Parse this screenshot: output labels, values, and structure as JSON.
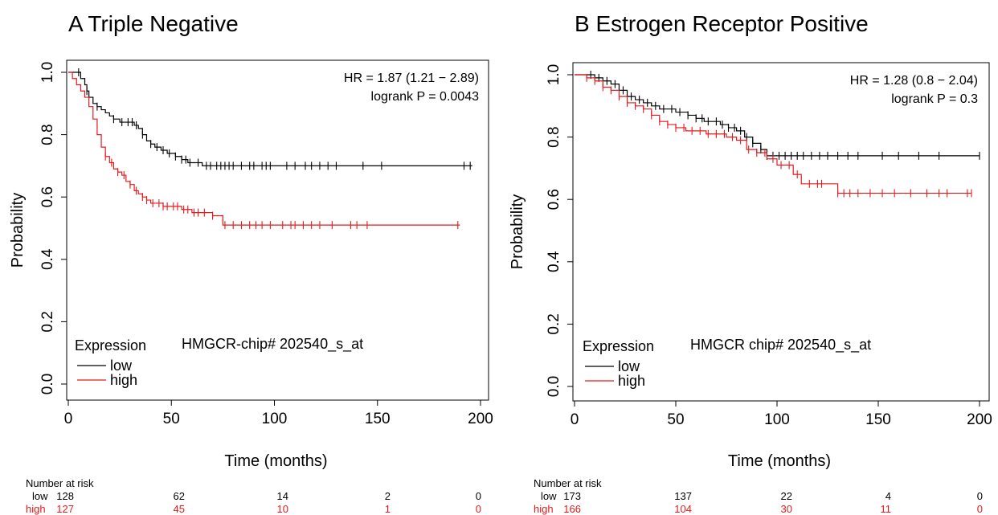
{
  "chart_data": [
    {
      "panel_label": "A",
      "title": "Triple Negative",
      "type": "line",
      "xlabel": "Time (months)",
      "ylabel": "Probability",
      "xlim": [
        0,
        200
      ],
      "ylim": [
        0,
        1.0
      ],
      "xticks": [
        "0",
        "50",
        "100",
        "150",
        "200"
      ],
      "yticks": [
        "0.0",
        "0.2",
        "0.4",
        "0.6",
        "0.8",
        "1.0"
      ],
      "hr_text": "HR = 1.87 (1.21 − 2.89)",
      "logrank_text": "logrank P = 0.0043",
      "legend_title": "Expression",
      "probe_label": "HMGCR-chip# 202540_s_at",
      "colors": {
        "low": "#000000",
        "high": "#e41a1c"
      },
      "series": [
        {
          "name": "low",
          "x": [
            0,
            5,
            6,
            8,
            9,
            10,
            12,
            14,
            16,
            18,
            20,
            22,
            25,
            28,
            32,
            34,
            36,
            38,
            40,
            42,
            45,
            48,
            52,
            55,
            58,
            62,
            65,
            68,
            196
          ],
          "y": [
            1.0,
            1.0,
            0.98,
            0.96,
            0.94,
            0.92,
            0.9,
            0.89,
            0.88,
            0.87,
            0.86,
            0.85,
            0.84,
            0.84,
            0.83,
            0.82,
            0.8,
            0.78,
            0.77,
            0.76,
            0.75,
            0.74,
            0.73,
            0.72,
            0.71,
            0.71,
            0.7,
            0.7,
            0.7
          ],
          "censor_x": [
            5,
            9,
            14,
            22,
            26,
            29,
            31,
            33,
            36,
            40,
            43,
            46,
            49,
            52,
            55,
            57,
            59,
            63,
            67,
            69,
            72,
            74,
            76,
            78,
            80,
            84,
            88,
            90,
            94,
            96,
            98,
            106,
            110,
            115,
            118,
            122,
            126,
            130,
            143,
            152,
            192,
            195
          ]
        },
        {
          "name": "high",
          "x": [
            0,
            2,
            4,
            6,
            8,
            10,
            12,
            14,
            16,
            18,
            20,
            22,
            24,
            26,
            28,
            30,
            32,
            34,
            36,
            38,
            40,
            43,
            46,
            50,
            55,
            60,
            65,
            70,
            75,
            190
          ],
          "y": [
            1.0,
            0.98,
            0.96,
            0.94,
            0.92,
            0.89,
            0.85,
            0.8,
            0.76,
            0.73,
            0.71,
            0.69,
            0.68,
            0.67,
            0.65,
            0.64,
            0.62,
            0.61,
            0.6,
            0.59,
            0.58,
            0.58,
            0.57,
            0.57,
            0.56,
            0.55,
            0.55,
            0.54,
            0.51,
            0.51
          ],
          "censor_x": [
            18,
            21,
            24,
            27,
            30,
            33,
            36,
            38,
            41,
            44,
            46,
            48,
            51,
            53,
            56,
            58,
            61,
            63,
            66,
            70,
            76,
            80,
            84,
            88,
            91,
            94,
            98,
            104,
            108,
            110,
            114,
            118,
            122,
            128,
            137,
            140,
            145,
            189
          ]
        }
      ]
    },
    {
      "panel_label": "B",
      "title": "Estrogen Receptor Positive",
      "type": "line",
      "xlabel": "Time (months)",
      "ylabel": "Probability",
      "xlim": [
        0,
        200
      ],
      "ylim": [
        0,
        1.0
      ],
      "xticks": [
        "0",
        "50",
        "100",
        "150",
        "200"
      ],
      "yticks": [
        "0.0",
        "0.2",
        "0.4",
        "0.6",
        "0.8",
        "1.0"
      ],
      "hr_text": "HR = 1.28 (0.8 − 2.04)",
      "logrank_text": "logrank P = 0.3",
      "legend_title": "Expression",
      "probe_label": "HMGCR chip# 202540_s_at",
      "colors": {
        "low": "#000000",
        "high": "#e41a1c"
      },
      "series": [
        {
          "name": "low",
          "x": [
            0,
            10,
            14,
            18,
            22,
            26,
            30,
            34,
            38,
            42,
            46,
            50,
            56,
            60,
            64,
            68,
            72,
            76,
            80,
            84,
            88,
            92,
            95,
            200
          ],
          "y": [
            1.0,
            0.99,
            0.98,
            0.97,
            0.95,
            0.93,
            0.92,
            0.91,
            0.9,
            0.89,
            0.89,
            0.88,
            0.87,
            0.86,
            0.85,
            0.85,
            0.84,
            0.83,
            0.82,
            0.8,
            0.78,
            0.76,
            0.74,
            0.74
          ],
          "censor_x": [
            8,
            12,
            16,
            20,
            24,
            28,
            32,
            36,
            40,
            44,
            48,
            52,
            56,
            60,
            63,
            66,
            70,
            73,
            76,
            79,
            82,
            85,
            88,
            92,
            95,
            98,
            101,
            104,
            107,
            110,
            113,
            117,
            121,
            125,
            130,
            135,
            140,
            152,
            160,
            170,
            180,
            200
          ]
        },
        {
          "name": "high",
          "x": [
            0,
            6,
            10,
            14,
            18,
            22,
            26,
            30,
            34,
            38,
            42,
            46,
            50,
            55,
            60,
            65,
            70,
            75,
            80,
            85,
            90,
            95,
            100,
            108,
            112,
            130,
            196
          ],
          "y": [
            1.0,
            0.99,
            0.98,
            0.96,
            0.95,
            0.93,
            0.91,
            0.9,
            0.89,
            0.87,
            0.85,
            0.84,
            0.83,
            0.82,
            0.82,
            0.81,
            0.81,
            0.8,
            0.79,
            0.76,
            0.75,
            0.73,
            0.71,
            0.68,
            0.65,
            0.62,
            0.62
          ],
          "censor_x": [
            6,
            10,
            14,
            18,
            22,
            26,
            30,
            34,
            38,
            42,
            46,
            50,
            54,
            58,
            62,
            66,
            70,
            74,
            78,
            82,
            86,
            90,
            94,
            98,
            102,
            106,
            110,
            116,
            120,
            122,
            130,
            133,
            136,
            140,
            146,
            152,
            158,
            166,
            174,
            180,
            184,
            194,
            196
          ]
        }
      ]
    }
  ],
  "risk_tables": [
    {
      "header": "Number at risk",
      "rows": [
        {
          "label": "low",
          "values": [
            "128",
            "62",
            "14",
            "2",
            "0"
          ],
          "color": "#000000"
        },
        {
          "label": "high",
          "values": [
            "127",
            "45",
            "10",
            "1",
            "0"
          ],
          "color": "#e41a1c"
        }
      ]
    },
    {
      "header": "Number at risk",
      "rows": [
        {
          "label": "low",
          "values": [
            "173",
            "137",
            "22",
            "4",
            "0"
          ],
          "color": "#000000"
        },
        {
          "label": "high",
          "values": [
            "166",
            "104",
            "30",
            "11",
            "0"
          ],
          "color": "#e41a1c"
        }
      ]
    }
  ]
}
